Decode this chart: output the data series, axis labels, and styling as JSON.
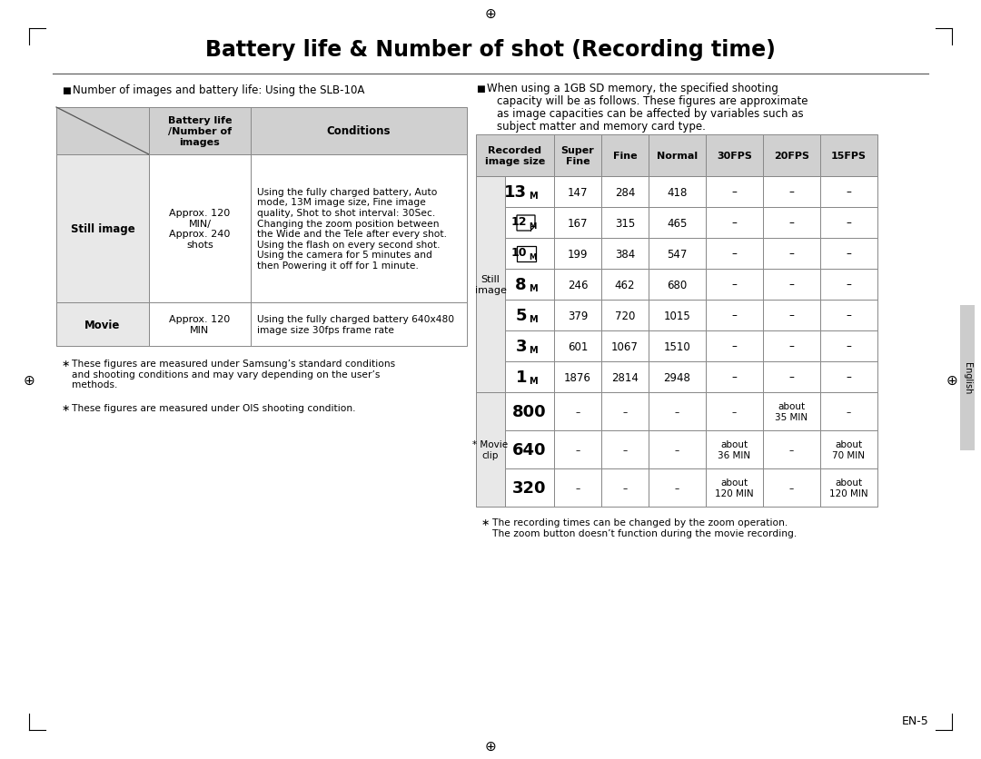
{
  "title": "Battery life & Number of shot (Recording time)",
  "page_number": "EN-5",
  "left_header": "Number of images and battery life: Using the SLB-10A",
  "right_header_line1": "When using a 1GB SD memory, the specified shooting",
  "right_header_line2": "capacity will be as follows. These figures are approximate",
  "right_header_line3": "as image capacities can be affected by variables such as",
  "right_header_line4": "subject matter and memory card type.",
  "left_table_headers": [
    "Battery life\n/Number of\nimages",
    "Conditions"
  ],
  "left_table_rows": [
    {
      "row_label": "Still image",
      "col1": "Approx. 120\nMIN/\nApprox. 240\nshots",
      "col2": "Using the fully charged battery, Auto\nmode, 13M image size, Fine image\nquality, Shot to shot interval: 30Sec.\nChanging the zoom position between\nthe Wide and the Tele after every shot.\nUsing the flash on every second shot.\nUsing the camera for 5 minutes and\nthen Powering it off for 1 minute."
    },
    {
      "row_label": "Movie",
      "col1": "Approx. 120\nMIN",
      "col2": "Using the fully charged battery 640x480\nimage size 30fps frame rate"
    }
  ],
  "left_footnotes": [
    "These figures are measured under Samsung’s standard conditions\nand shooting conditions and may vary depending on the user’s\nmethods.",
    "These figures are measured under OIS shooting condition."
  ],
  "right_table_headers": [
    "Recorded\nimage size",
    "Super\nFine",
    "Fine",
    "Normal",
    "30FPS",
    "20FPS",
    "15FPS"
  ],
  "right_table_still_rows": [
    {
      "size_label": "13",
      "size_suffix": "M",
      "size_style": "bold_plain",
      "superfine": "147",
      "fine": "284",
      "normal": "418",
      "fps30": "–",
      "fps20": "–",
      "fps15": "–"
    },
    {
      "size_label": "12",
      "size_suffix": "M",
      "size_style": "icon_box_corner",
      "superfine": "167",
      "fine": "315",
      "normal": "465",
      "fps30": "–",
      "fps20": "–",
      "fps15": "–"
    },
    {
      "size_label": "10",
      "size_suffix": "M",
      "size_style": "icon_box_square",
      "superfine": "199",
      "fine": "384",
      "normal": "547",
      "fps30": "–",
      "fps20": "–",
      "fps15": "–"
    },
    {
      "size_label": "8",
      "size_suffix": "M",
      "size_style": "bold_plain",
      "superfine": "246",
      "fine": "462",
      "normal": "680",
      "fps30": "–",
      "fps20": "–",
      "fps15": "–"
    },
    {
      "size_label": "5",
      "size_suffix": "M",
      "size_style": "bold_plain",
      "superfine": "379",
      "fine": "720",
      "normal": "1015",
      "fps30": "–",
      "fps20": "–",
      "fps15": "–"
    },
    {
      "size_label": "3",
      "size_suffix": "M",
      "size_style": "bold_plain",
      "superfine": "601",
      "fine": "1067",
      "normal": "1510",
      "fps30": "–",
      "fps20": "–",
      "fps15": "–"
    },
    {
      "size_label": "1",
      "size_suffix": "M",
      "size_style": "bold_plain",
      "superfine": "1876",
      "fine": "2814",
      "normal": "2948",
      "fps30": "–",
      "fps20": "–",
      "fps15": "–"
    }
  ],
  "right_table_movie_rows": [
    {
      "size_label": "800",
      "superfine": "–",
      "fine": "–",
      "normal": "–",
      "fps30": "–",
      "fps20": "about\n35 MIN",
      "fps15": "–"
    },
    {
      "size_label": "640",
      "superfine": "–",
      "fine": "–",
      "normal": "–",
      "fps30": "about\n36 MIN",
      "fps20": "–",
      "fps15": "about\n70 MIN"
    },
    {
      "size_label": "320",
      "superfine": "–",
      "fine": "–",
      "normal": "–",
      "fps30": "about\n120 MIN",
      "fps20": "–",
      "fps15": "about\n120 MIN"
    }
  ],
  "right_still_label": "Still\nimage",
  "right_movie_label": "* Movie\nclip",
  "right_footnote": "The recording times can be changed by the zoom operation.\nThe zoom button doesn’t function during the movie recording.",
  "bg_color": "#ffffff",
  "header_bg": "#d0d0d0",
  "cell_bg_grey": "#e8e8e8",
  "border_color": "#888888",
  "english_sidebar_bg": "#cccccc"
}
